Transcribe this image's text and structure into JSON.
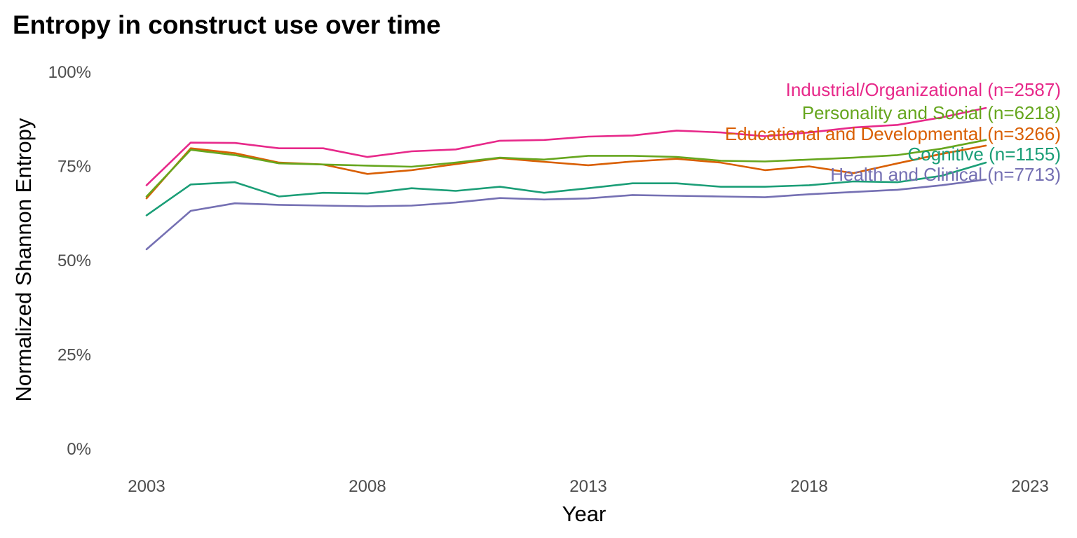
{
  "chart_data": {
    "type": "line",
    "title": "Entropy in construct use over time",
    "xlabel": "Year",
    "ylabel": "Normalized Shannon Entropy",
    "xlim": [
      2001,
      2026
    ],
    "ylim": [
      0,
      100
    ],
    "x_ticks": [
      "2003",
      "2008",
      "2013",
      "2018",
      "2023"
    ],
    "y_ticks": [
      "0%",
      "25%",
      "50%",
      "75%",
      "100%"
    ],
    "grid": false,
    "legend": "direct labels at line ends",
    "x": [
      2003,
      2004,
      2005,
      2006,
      2007,
      2008,
      2009,
      2010,
      2011,
      2012,
      2013,
      2014,
      2015,
      2016,
      2017,
      2018,
      2019,
      2020,
      2021,
      2022
    ],
    "series": [
      {
        "name": "Industrial/Organizational (n=2587)",
        "color": "#e7298a",
        "values": [
          70.0,
          81.3,
          81.2,
          79.8,
          79.8,
          77.5,
          79.0,
          79.5,
          81.8,
          82.0,
          82.9,
          83.2,
          84.5,
          84.0,
          83.0,
          84.0,
          85.3,
          86.0,
          88.0,
          90.5
        ]
      },
      {
        "name": "Personality and Social (n=6218)",
        "color": "#66a61e",
        "values": [
          67.0,
          79.4,
          78.0,
          75.8,
          75.5,
          75.2,
          74.9,
          76.0,
          77.3,
          76.8,
          77.8,
          77.8,
          77.5,
          76.5,
          76.3,
          76.8,
          77.3,
          78.0,
          79.7,
          82.0
        ]
      },
      {
        "name": "Educational and Developmental (n=3266)",
        "color": "#d95f02",
        "values": [
          66.5,
          79.8,
          78.5,
          76.0,
          75.5,
          73.0,
          74.0,
          75.6,
          77.2,
          76.2,
          75.3,
          76.3,
          77.0,
          76.0,
          74.0,
          75.0,
          73.2,
          75.8,
          78.3,
          80.5
        ]
      },
      {
        "name": "Cognitive (n=1155)",
        "color": "#1b9e77",
        "values": [
          62.0,
          70.2,
          70.8,
          67.0,
          68.0,
          67.8,
          69.2,
          68.5,
          69.6,
          68.0,
          69.2,
          70.5,
          70.5,
          69.6,
          69.6,
          70.0,
          71.0,
          70.8,
          72.5,
          76.0
        ]
      },
      {
        "name": "Health and Clinical (n=7713)",
        "color": "#7570b3",
        "values": [
          53.0,
          63.2,
          65.2,
          64.8,
          64.6,
          64.4,
          64.6,
          65.4,
          66.6,
          66.2,
          66.5,
          67.4,
          67.2,
          67.0,
          66.8,
          67.6,
          68.2,
          68.8,
          70.0,
          71.5
        ]
      }
    ]
  }
}
